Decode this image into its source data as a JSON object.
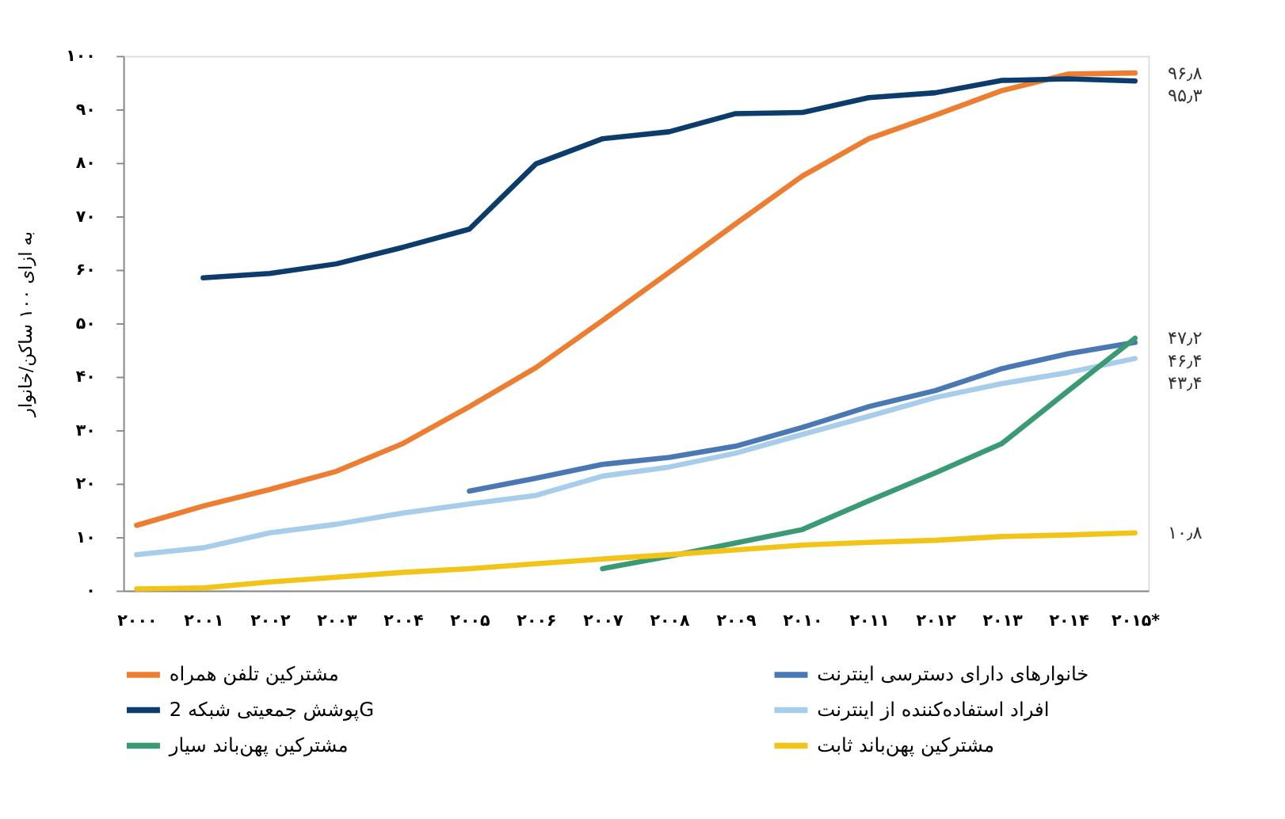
{
  "chart_data": {
    "type": "line",
    "ylabel": "به ازای ۱۰۰ ساکن/خانوار",
    "categories": [
      "۲۰۰۰",
      "۲۰۰۱",
      "۲۰۰۲",
      "۲۰۰۳",
      "۲۰۰۴",
      "۲۰۰۵",
      "۲۰۰۶",
      "۲۰۰۷",
      "۲۰۰۸",
      "۲۰۰۹",
      "۲۰۱۰",
      "۲۰۱۱",
      "۲۰۱۲",
      "۲۰۱۳",
      "۲۰۱۴",
      "۲۰۱۵*"
    ],
    "series": [
      {
        "name": "مشترکین تلفن همراه",
        "color": "#ed7d31",
        "values": [
          12.2,
          15.8,
          18.9,
          22.3,
          27.5,
          34.4,
          41.7,
          50.5,
          59.5,
          68.6,
          77.5,
          84.5,
          88.9,
          93.5,
          96.6,
          96.8
        ]
      },
      {
        "name": "خانوارهای دارای دسترسی اینترنت",
        "color": "#4a78b5",
        "values": [
          null,
          null,
          null,
          null,
          null,
          18.6,
          21.0,
          23.6,
          24.9,
          27.0,
          30.5,
          34.4,
          37.4,
          41.5,
          44.3,
          46.4
        ]
      },
      {
        "name": "پوشش جمعیتی شبکه 2G",
        "color": "#0b3c6b",
        "values": [
          null,
          58.5,
          59.3,
          61.1,
          64.2,
          67.6,
          79.8,
          84.5,
          85.8,
          89.2,
          89.4,
          92.2,
          93.1,
          95.4,
          95.7,
          95.3
        ]
      },
      {
        "name": "افراد استفاده‌کننده از اینترنت",
        "color": "#a7cdea",
        "values": [
          6.7,
          8.0,
          10.8,
          12.4,
          14.5,
          16.2,
          17.8,
          21.4,
          23.1,
          25.7,
          29.2,
          32.6,
          36.1,
          38.7,
          40.8,
          43.4
        ]
      },
      {
        "name": "مشترکین پهن‌باند سیار",
        "color": "#3a9a74",
        "values": [
          null,
          null,
          null,
          null,
          null,
          null,
          null,
          4.1,
          6.4,
          8.9,
          11.4,
          16.8,
          22.0,
          27.5,
          37.4,
          47.2
        ]
      },
      {
        "name": "مشترکین پهن‌باند ثابت",
        "color": "#f2c418",
        "values": [
          0.3,
          0.5,
          1.6,
          2.5,
          3.4,
          4.1,
          5.0,
          5.9,
          6.7,
          7.6,
          8.5,
          9.0,
          9.4,
          10.1,
          10.4,
          10.8
        ]
      }
    ],
    "ylim": [
      0,
      100
    ],
    "yticks": [
      {
        "value": 0,
        "label": "۰"
      },
      {
        "value": 10,
        "label": "۱۰"
      },
      {
        "value": 20,
        "label": "۲۰"
      },
      {
        "value": 30,
        "label": "۳۰"
      },
      {
        "value": 40,
        "label": "۴۰"
      },
      {
        "value": 50,
        "label": "۵۰"
      },
      {
        "value": 60,
        "label": "۶۰"
      },
      {
        "value": 70,
        "label": "۷۰"
      },
      {
        "value": 80,
        "label": "۸۰"
      },
      {
        "value": 90,
        "label": "۹۰"
      },
      {
        "value": 100,
        "label": "۱۰۰"
      }
    ],
    "annotations": [
      {
        "text": "۹۶٫۸",
        "x": "۲۰۱۵*",
        "y": 96.8
      },
      {
        "text": "۹۵٫۳",
        "x": "۲۰۱۵*",
        "y": 95.3
      },
      {
        "text": "۴۷٫۲",
        "x": "۲۰۱۵*",
        "y": 47.2
      },
      {
        "text": "۴۶٫۴",
        "x": "۲۰۱۵*",
        "y": 46.4
      },
      {
        "text": "۴۳٫۴",
        "x": "۲۰۱۵*",
        "y": 43.4
      },
      {
        "text": "۱۰٫۸",
        "x": "۲۰۱۵*",
        "y": 10.8
      }
    ],
    "grid": false,
    "legend": "bottom",
    "marker": "none",
    "line_style": "solid"
  }
}
